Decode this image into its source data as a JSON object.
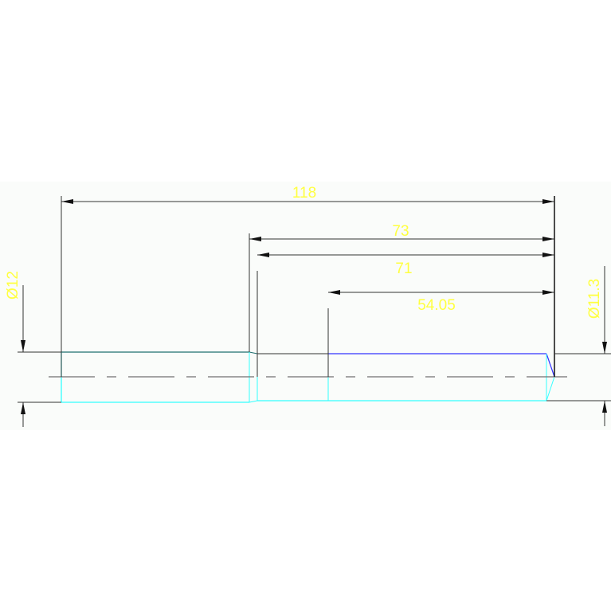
{
  "drawing": {
    "dimensions": {
      "overall_length": "118",
      "length_73": "73",
      "length_71": "71",
      "length_54": "54.05",
      "diameter_left": "Ø12",
      "diameter_right": "Ø11.3"
    },
    "colors": {
      "background": "#fafcfa",
      "dimension_line": "#222222",
      "dimension_text": "#ffff40",
      "edge_cyan": "#33ffff",
      "edge_teal": "#1f6f6f",
      "edge_blue": "#3333ff",
      "centerline": "#707070"
    }
  }
}
